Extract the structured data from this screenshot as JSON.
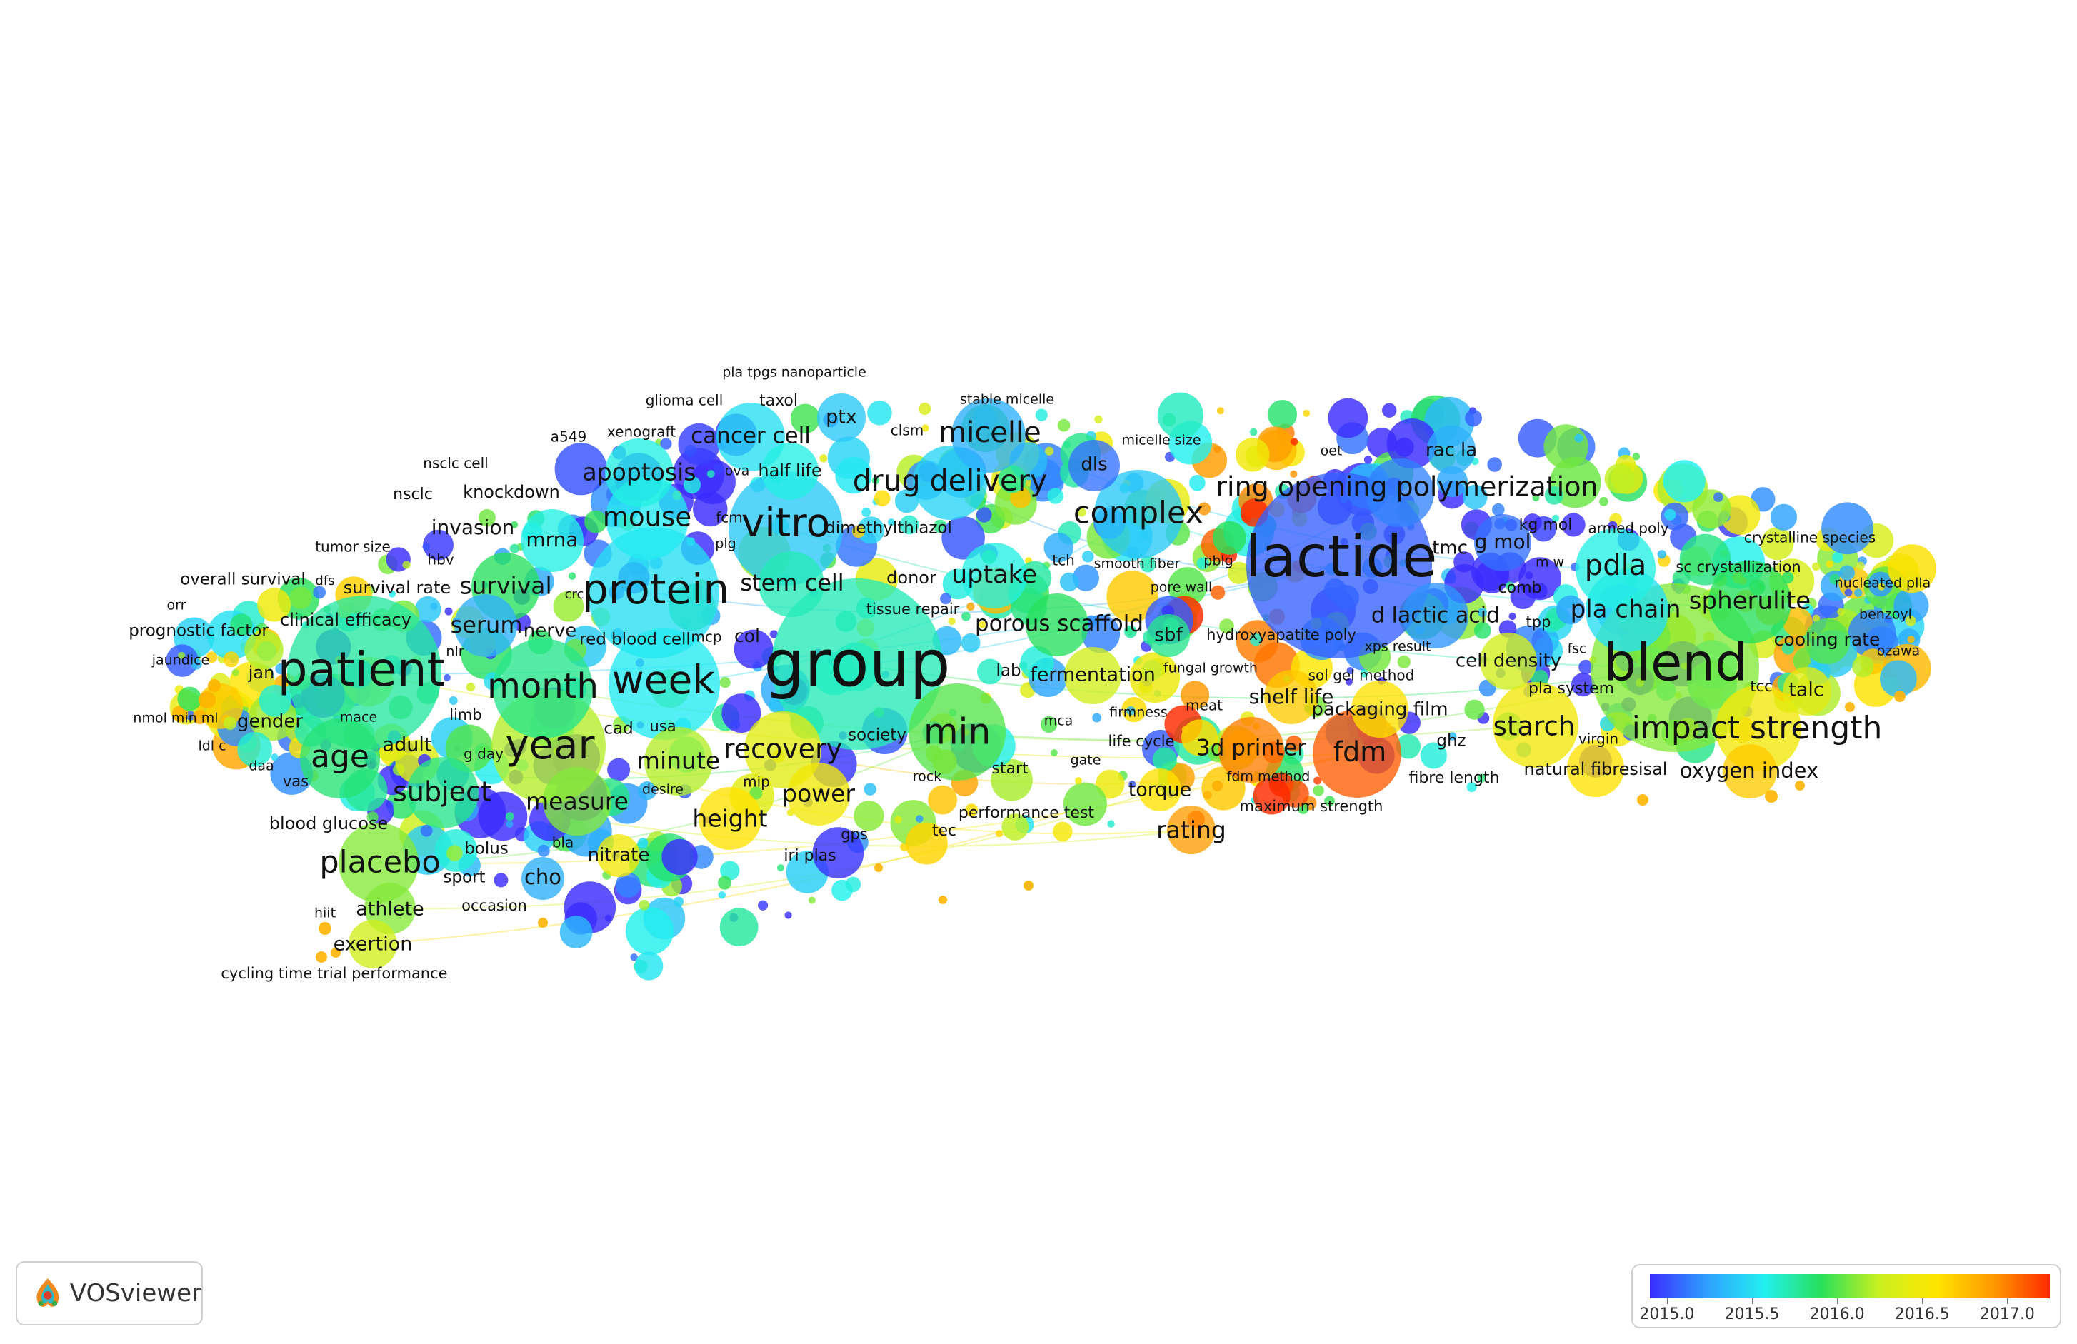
{
  "app": {
    "name": "VOSviewer",
    "logo_icon": "vosviewer-logo-icon"
  },
  "legend": {
    "ticks": [
      "2015.0",
      "2015.5",
      "2016.0",
      "2016.5",
      "2017.0"
    ],
    "tick_values": [
      2015.0,
      2015.5,
      2016.0,
      2016.5,
      2017.0
    ],
    "min": 2014.9,
    "max": 2017.25,
    "gradient": [
      "#3a2cff",
      "#2fa0ff",
      "#22f0f0",
      "#28e05a",
      "#c8f020",
      "#ffe600",
      "#ff9a00",
      "#ff2a00"
    ]
  },
  "chart_data": {
    "type": "network",
    "color_variable": "average publication year",
    "nodes": [
      {
        "label": "lactide",
        "weight": 10,
        "year": 2015.05
      },
      {
        "label": "group",
        "weight": 9,
        "year": 2015.7
      },
      {
        "label": "blend",
        "weight": 9,
        "year": 2016.1
      },
      {
        "label": "patient",
        "weight": 8,
        "year": 2015.75
      },
      {
        "label": "protein",
        "weight": 7,
        "year": 2015.5
      },
      {
        "label": "vitro",
        "weight": 7,
        "year": 2015.4
      },
      {
        "label": "week",
        "weight": 6.5,
        "year": 2015.55
      },
      {
        "label": "month",
        "weight": 6,
        "year": 2015.8
      },
      {
        "label": "year",
        "weight": 6.5,
        "year": 2016.2
      },
      {
        "label": "min",
        "weight": 6,
        "year": 2016.0
      },
      {
        "label": "impact strength",
        "weight": 5,
        "year": 2016.5
      },
      {
        "label": "ring opening polymerization",
        "weight": 5.5,
        "year": 2015.15
      },
      {
        "label": "complex",
        "weight": 5,
        "year": 2015.4
      },
      {
        "label": "drug delivery",
        "weight": 5.5,
        "year": 2015.45
      },
      {
        "label": "micelle",
        "weight": 5,
        "year": 2015.3
      },
      {
        "label": "placebo",
        "weight": 5,
        "year": 2016.1
      },
      {
        "label": "age",
        "weight": 5,
        "year": 2015.85
      },
      {
        "label": "subject",
        "weight": 4.5,
        "year": 2015.8
      },
      {
        "label": "mouse",
        "weight": 5,
        "year": 2015.55
      },
      {
        "label": "apoptosis",
        "weight": 4.5,
        "year": 2015.6
      },
      {
        "label": "survival",
        "weight": 4.5,
        "year": 2015.9
      },
      {
        "label": "serum",
        "weight": 4,
        "year": 2015.3
      },
      {
        "label": "mrna",
        "weight": 4,
        "year": 2015.6
      },
      {
        "label": "stem cell",
        "weight": 4.5,
        "year": 2015.7
      },
      {
        "label": "uptake",
        "weight": 4.5,
        "year": 2015.6
      },
      {
        "label": "porous scaffold",
        "weight": 4.5,
        "year": 2015.9
      },
      {
        "label": "recovery",
        "weight": 5,
        "year": 2016.4
      },
      {
        "label": "minute",
        "weight": 4.5,
        "year": 2016.2
      },
      {
        "label": "measure",
        "weight": 4.5,
        "year": 2016.1
      },
      {
        "label": "height",
        "weight": 4.5,
        "year": 2016.6
      },
      {
        "label": "power",
        "weight": 4.5,
        "year": 2016.5
      },
      {
        "label": "rating",
        "weight": 4.5,
        "year": 2016.9
      },
      {
        "label": "fdm",
        "weight": 5.5,
        "year": 2017.1
      },
      {
        "label": "3d printer",
        "weight": 4.5,
        "year": 2017.0
      },
      {
        "label": "shelf life",
        "weight": 4,
        "year": 2016.7
      },
      {
        "label": "packaging film",
        "weight": 4,
        "year": 2016.6
      },
      {
        "label": "starch",
        "weight": 5,
        "year": 2016.5
      },
      {
        "label": "pdla",
        "weight": 5,
        "year": 2015.6
      },
      {
        "label": "pla chain",
        "weight": 4.5,
        "year": 2015.5
      },
      {
        "label": "spherulite",
        "weight": 4.5,
        "year": 2015.9
      },
      {
        "label": "d lactic acid",
        "weight": 4.5,
        "year": 2015.2
      },
      {
        "label": "cell density",
        "weight": 4,
        "year": 2016.3
      },
      {
        "label": "cancer cell",
        "weight": 4.5,
        "year": 2015.5
      },
      {
        "label": "fermentation",
        "weight": 4,
        "year": 2016.3
      },
      {
        "label": "natural fibresisal",
        "weight": 3.5,
        "year": 2016.6
      },
      {
        "label": "oxygen index",
        "weight": 4,
        "year": 2016.7
      },
      {
        "label": "talc",
        "weight": 3.5,
        "year": 2016.4
      },
      {
        "label": "cooling rate",
        "weight": 3.5,
        "year": 2016.0
      },
      {
        "label": "rac la",
        "weight": 3.5,
        "year": 2015.3
      },
      {
        "label": "g mol",
        "weight": 4,
        "year": 2015.1
      },
      {
        "label": "dls",
        "weight": 3.5,
        "year": 2015.1
      },
      {
        "label": "ptx",
        "weight": 3.5,
        "year": 2015.4
      },
      {
        "label": "half life",
        "weight": 3.5,
        "year": 2015.6
      },
      {
        "label": "torque",
        "weight": 3.5,
        "year": 2016.6
      },
      {
        "label": "sbf",
        "weight": 3.5,
        "year": 2015.8
      },
      {
        "label": "athlete",
        "weight": 3.5,
        "year": 2016.1
      },
      {
        "label": "exertion",
        "weight": 3.5,
        "year": 2016.3
      },
      {
        "label": "cho",
        "weight": 3.5,
        "year": 2015.3
      },
      {
        "label": "nitrate",
        "weight": 3.5,
        "year": 2016.5
      }
    ],
    "labels": [
      "pla tpgs nanoparticle",
      "glioma cell",
      "taxol",
      "stable micelle",
      "ptx",
      "micelle",
      "clsm",
      "a549",
      "xenograft",
      "cancer cell",
      "micelle size",
      "nsclc cell",
      "half life",
      "ova",
      "drug delivery",
      "dls",
      "oet",
      "rac la",
      "apoptosis",
      "nsclc",
      "knockdown",
      "ring opening polymerization",
      "mouse",
      "fcm",
      "complex",
      "invasion",
      "mrna",
      "vitro",
      "plg",
      "dimethylthiazol",
      "kg mol",
      "armed poly",
      "crystalline species",
      "tumor size",
      "hbv",
      "lactide",
      "tmc",
      "g mol",
      "m w",
      "sc crystallization",
      "overall survival",
      "dfs",
      "survival rate",
      "survival",
      "crc",
      "protein",
      "stem cell",
      "donor",
      "uptake",
      "tch",
      "smooth fiber",
      "pblg",
      "pore wall",
      "comb",
      "pdla",
      "nucleated plla",
      "orr",
      "clinical efficacy",
      "serum",
      "nerve",
      "red blood cell",
      "mcp",
      "col",
      "tissue repair",
      "porous scaffold",
      "sbf",
      "hydroxyapatite poly",
      "d lactic acid",
      "tpp",
      "pla chain",
      "spherulite",
      "benzoyl",
      "prognostic factor",
      "nlr",
      "group",
      "xps result",
      "fsc",
      "cooling rate",
      "ozawa",
      "jaundice",
      "jan",
      "patient",
      "month",
      "week",
      "lab",
      "fermentation",
      "fungal growth",
      "cell density",
      "blend",
      "nmol min ml",
      "gender",
      "mace",
      "limb",
      "shelf life",
      "sol gel method",
      "pla system",
      "tcc",
      "talc",
      "ldl c",
      "cad",
      "usa",
      "min",
      "mca",
      "meat",
      "packaging film",
      "starch",
      "virgin",
      "impact strength",
      "age",
      "adult",
      "year",
      "society",
      "firmness",
      "daa",
      "g day",
      "minute",
      "recovery",
      "gate",
      "life cycle",
      "3d printer",
      "fdm",
      "ghz",
      "vas",
      "desire",
      "mip",
      "rock",
      "start",
      "fdm method",
      "fibre length",
      "natural fibresisal",
      "oxygen index",
      "subject",
      "measure",
      "power",
      "torque",
      "maximum strength",
      "blood glucose",
      "height",
      "performance test",
      "rating",
      "tec",
      "gps",
      "bla",
      "placebo",
      "bolus",
      "nitrate",
      "iri plas",
      "sport",
      "cho",
      "hiit",
      "athlete",
      "occasion",
      "exertion",
      "cycling time trial performance"
    ]
  }
}
